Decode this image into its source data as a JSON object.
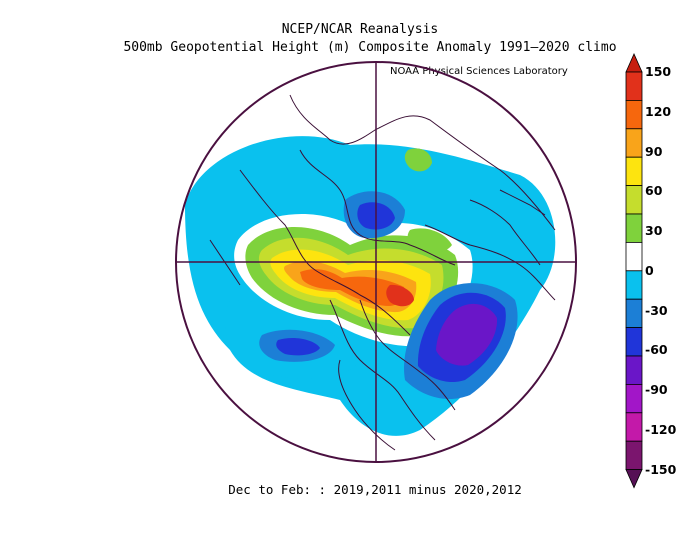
{
  "title_line1": "NCEP/NCAR Reanalysis",
  "title_line2": "500mb Geopotential Height (m) Composite Anomaly 1991–2020 climo",
  "credit": "NOAA Physical Sciences Laboratory",
  "footer": "Dec to Feb: : 2019,2011 minus 2020,2012",
  "colorbar": {
    "tick_labels": [
      "150",
      "120",
      "90",
      "60",
      "30",
      "0",
      "-30",
      "-60",
      "-90",
      "-120",
      "-150"
    ],
    "colors": [
      "#e1311b",
      "#f6670d",
      "#f9a41a",
      "#fde40f",
      "#c5dd2d",
      "#7fd23c",
      "#ffffff",
      "#0ac1ee",
      "#1c7fd6",
      "#2035d9",
      "#6a16c8",
      "#a216c8",
      "#c319a9",
      "#7b156e"
    ],
    "arrow_top_color": "#c71e10",
    "arrow_bottom_color": "#561055"
  },
  "map": {
    "projection": "north polar stereographic",
    "frame_color": "#4a1040",
    "coastline_color": "#3b1036"
  }
}
